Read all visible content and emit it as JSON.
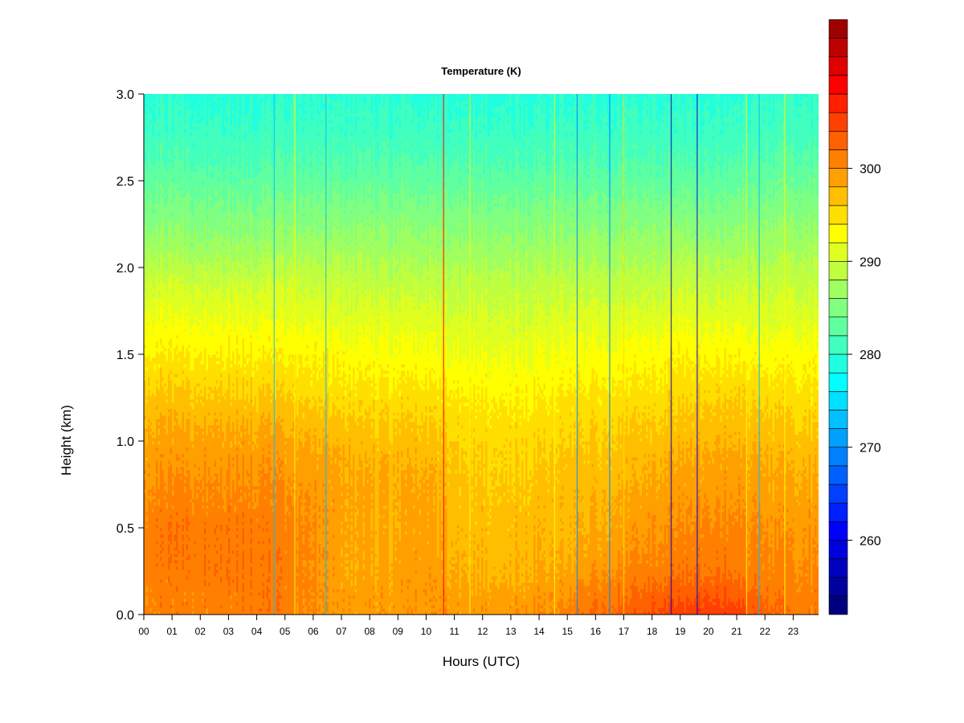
{
  "chart_data": {
    "type": "heatmap",
    "title": "Temperature (K)",
    "xlabel": "Hours (UTC)",
    "ylabel": "Height (km)",
    "xlim": [
      0,
      23.9
    ],
    "ylim": [
      0,
      3.0
    ],
    "x_ticks": [
      {
        "value": 0,
        "label": "00"
      },
      {
        "value": 1,
        "label": "01"
      },
      {
        "value": 2,
        "label": "02"
      },
      {
        "value": 3,
        "label": "03"
      },
      {
        "value": 4,
        "label": "04"
      },
      {
        "value": 5,
        "label": "05"
      },
      {
        "value": 6,
        "label": "06"
      },
      {
        "value": 7,
        "label": "07"
      },
      {
        "value": 8,
        "label": "08"
      },
      {
        "value": 9,
        "label": "09"
      },
      {
        "value": 10,
        "label": "10"
      },
      {
        "value": 11,
        "label": "11"
      },
      {
        "value": 12,
        "label": "12"
      },
      {
        "value": 13,
        "label": "13"
      },
      {
        "value": 14,
        "label": "14"
      },
      {
        "value": 15,
        "label": "15"
      },
      {
        "value": 16,
        "label": "16"
      },
      {
        "value": 17,
        "label": "17"
      },
      {
        "value": 18,
        "label": "18"
      },
      {
        "value": 19,
        "label": "19"
      },
      {
        "value": 20,
        "label": "20"
      },
      {
        "value": 21,
        "label": "21"
      },
      {
        "value": 22,
        "label": "22"
      },
      {
        "value": 23,
        "label": "23"
      }
    ],
    "y_ticks": [
      {
        "value": 0.0,
        "label": "0.0"
      },
      {
        "value": 0.5,
        "label": "0.5"
      },
      {
        "value": 1.0,
        "label": "1.0"
      },
      {
        "value": 1.5,
        "label": "1.5"
      },
      {
        "value": 2.0,
        "label": "2.0"
      },
      {
        "value": 2.5,
        "label": "2.5"
      },
      {
        "value": 3.0,
        "label": "3.0"
      }
    ],
    "colorbar": {
      "min": 252,
      "max": 308,
      "step": 2,
      "ticks": [
        {
          "value": 260,
          "label": "260"
        },
        {
          "value": 270,
          "label": "270"
        },
        {
          "value": 280,
          "label": "280"
        },
        {
          "value": 290,
          "label": "290"
        },
        {
          "value": 300,
          "label": "300"
        }
      ],
      "colors": [
        "#00007f",
        "#00009f",
        "#0000bf",
        "#0000df",
        "#0000ff",
        "#0020ff",
        "#0040ff",
        "#0060ff",
        "#0080ff",
        "#00a0ff",
        "#00c0ff",
        "#00e0ff",
        "#00ffff",
        "#20ffdf",
        "#40ffbf",
        "#60ff9f",
        "#80ff80",
        "#9fff60",
        "#bfff40",
        "#dfff20",
        "#ffff00",
        "#ffdf00",
        "#ffbf00",
        "#ff9f00",
        "#ff8000",
        "#ff6000",
        "#ff4000",
        "#ff2000",
        "#ff0000",
        "#df0000",
        "#bf0000",
        "#9f0000"
      ]
    },
    "temperature_profile": {
      "heights_km": [
        0.0,
        0.1,
        0.2,
        0.3,
        0.5,
        0.7,
        0.9,
        1.1,
        1.3,
        1.5,
        1.7,
        1.9,
        2.0,
        2.2,
        2.4,
        2.6,
        2.8,
        3.0
      ],
      "hours": [
        0,
        1,
        2,
        3,
        4,
        5,
        6,
        7,
        8,
        9,
        10,
        11,
        12,
        13,
        14,
        15,
        16,
        17,
        18,
        19,
        20,
        21,
        22,
        23
      ],
      "values_k": [
        [
          300.5,
          300.8,
          301,
          301,
          301.5,
          301,
          300,
          299,
          299,
          299,
          299.5,
          299,
          299,
          299.5,
          300,
          301,
          302,
          303,
          304,
          305,
          305.5,
          305,
          303,
          301
        ],
        [
          300.5,
          300.8,
          301,
          301,
          301.5,
          301,
          300,
          299,
          299,
          299,
          299.5,
          299,
          299,
          299,
          299.5,
          300,
          301,
          302,
          303,
          303.5,
          304,
          303.5,
          302,
          301
        ],
        [
          301,
          301,
          301.5,
          301.5,
          301.5,
          301,
          300,
          298.5,
          298.5,
          299,
          299.5,
          298.5,
          298,
          298,
          298.5,
          299,
          300,
          301,
          301.5,
          302,
          302.5,
          302,
          301,
          300.5
        ],
        [
          301,
          301.5,
          301.5,
          301.5,
          301.5,
          301,
          300,
          298.5,
          298,
          298.5,
          299,
          298,
          297.5,
          297.5,
          298,
          298,
          299,
          300,
          300.5,
          301,
          301.5,
          301,
          300.5,
          300
        ],
        [
          301,
          301.5,
          301.5,
          301.5,
          301.5,
          300.5,
          300,
          298.5,
          298,
          298,
          299,
          297.5,
          297,
          297,
          297.5,
          297.5,
          298,
          299,
          299.5,
          300,
          300.5,
          300.5,
          300,
          299.5
        ],
        [
          300,
          300.5,
          300.5,
          300.5,
          300.5,
          300,
          299.5,
          298.5,
          298,
          298,
          298.5,
          297,
          296.5,
          296.5,
          297,
          297,
          297.5,
          298,
          298.5,
          299,
          299.5,
          299.5,
          299,
          298.5
        ],
        [
          299,
          299.5,
          299.5,
          299.5,
          299.5,
          299,
          298.5,
          298,
          297.5,
          297.5,
          297.5,
          296.5,
          296,
          296,
          296,
          296.5,
          296.5,
          297,
          297.5,
          298,
          298.5,
          298.5,
          298,
          297.5
        ],
        [
          298,
          298,
          298,
          298,
          298,
          297.5,
          297,
          296.5,
          296,
          296,
          296,
          295.5,
          295,
          295,
          295,
          295.5,
          295.5,
          296,
          296,
          296.5,
          297,
          297,
          296.5,
          296
        ],
        [
          296,
          296,
          296,
          296,
          296,
          295.5,
          295,
          294.5,
          294.5,
          294.5,
          294.5,
          294,
          293.5,
          293.5,
          293.5,
          294,
          294,
          294.5,
          294.5,
          295,
          295.5,
          295.5,
          295,
          294.5
        ],
        [
          294,
          294,
          294,
          294,
          294,
          293.5,
          293.5,
          293,
          292.5,
          292.5,
          292.5,
          292,
          292,
          292,
          292,
          292.5,
          292.5,
          293,
          293,
          293.5,
          293.5,
          293.5,
          293,
          293
        ],
        [
          292,
          292,
          292,
          292,
          292,
          291.5,
          291.5,
          291,
          291,
          291,
          291,
          290.5,
          290.5,
          290.5,
          290.5,
          291,
          291,
          291,
          291,
          291.5,
          291.5,
          291.5,
          291,
          291
        ],
        [
          290,
          290,
          290,
          290,
          290,
          290,
          289.5,
          289.5,
          289,
          289,
          289,
          289,
          289,
          289,
          289,
          289,
          289,
          289,
          289,
          289.5,
          289.5,
          289.5,
          289.5,
          289.5
        ],
        [
          288.5,
          288.5,
          288.5,
          288.5,
          288.5,
          288.5,
          288.5,
          288.5,
          288,
          288,
          288,
          288,
          288,
          288,
          288,
          288,
          288,
          288,
          288,
          288.5,
          288.5,
          288.5,
          288.5,
          288.5
        ],
        [
          286,
          286,
          286,
          286,
          286,
          286,
          286,
          286,
          286,
          286,
          286,
          286,
          286,
          286,
          286,
          286,
          286,
          286,
          286,
          286,
          286,
          286,
          286.5,
          286.5
        ],
        [
          284,
          284,
          284,
          284,
          284,
          284,
          284,
          284,
          284,
          284,
          284,
          284,
          284,
          284,
          284,
          284,
          284,
          284,
          284,
          284,
          284,
          284,
          284.5,
          284.5
        ],
        [
          282,
          282,
          282,
          282,
          282,
          282,
          282,
          282,
          282,
          282,
          282,
          282,
          282,
          282,
          282,
          282,
          282,
          282,
          282,
          282,
          282,
          282,
          282.5,
          282.5
        ],
        [
          280.5,
          280.5,
          280.5,
          280.5,
          280.5,
          280.5,
          280.5,
          280.5,
          280.5,
          280.5,
          280.5,
          280.5,
          280.5,
          280.5,
          280.5,
          280.5,
          280.5,
          280.5,
          280.5,
          280.5,
          280.5,
          280.5,
          281,
          281
        ],
        [
          279.5,
          279.5,
          279.5,
          279.5,
          279.5,
          279.5,
          279.5,
          279.5,
          279.5,
          279.5,
          279.5,
          279.5,
          279.5,
          279.5,
          279.5,
          279.5,
          279.5,
          279.5,
          279.5,
          279.5,
          279.5,
          279.5,
          280,
          280
        ]
      ]
    },
    "grid": false,
    "legend": "colorbar-right"
  }
}
